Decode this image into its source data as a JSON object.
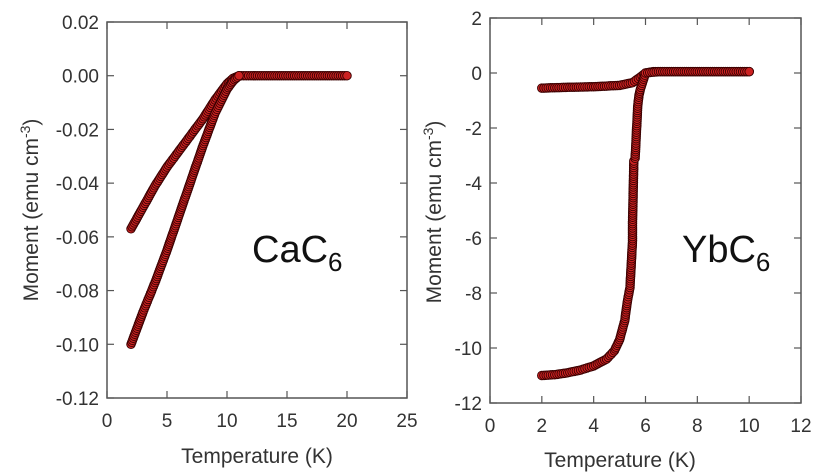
{
  "chart_data": [
    {
      "type": "scatter",
      "id": "cac6",
      "xlabel": "Temperature (K)",
      "ylabel": "Moment (emu cm",
      "ylabel_sup": "-3",
      "ylabel_close": ")",
      "xlim": [
        0,
        25
      ],
      "ylim": [
        -0.12,
        0.02
      ],
      "xticks": [
        0,
        5,
        10,
        15,
        20,
        25
      ],
      "yticks": [
        0.02,
        0.0,
        -0.02,
        -0.04,
        -0.06,
        -0.08,
        -0.1,
        -0.12
      ],
      "xtick_labels": [
        "0",
        "5",
        "10",
        "15",
        "20",
        "25"
      ],
      "ytick_labels": [
        "0.02",
        "0.00",
        "-0.02",
        "-0.04",
        "-0.06",
        "-0.08",
        "-0.10",
        "-0.12"
      ],
      "annotation": "CaC",
      "annotation_sub": "6",
      "marker_color": "#cc2222",
      "series": [
        {
          "x": [
            2.0,
            3.0,
            4.0,
            5.0,
            6.0,
            7.0,
            8.0,
            9.0,
            10.0,
            10.5,
            11.0,
            12.0,
            14.0,
            16.0,
            18.0,
            20.0
          ],
          "y": [
            -0.057,
            -0.049,
            -0.041,
            -0.034,
            -0.028,
            -0.022,
            -0.016,
            -0.009,
            -0.003,
            -0.001,
            0.0,
            0.0,
            0.0,
            0.0,
            0.0,
            0.0
          ]
        },
        {
          "x": [
            2.0,
            3.0,
            4.0,
            5.0,
            6.0,
            7.0,
            8.0,
            9.0,
            10.0,
            10.5,
            11.0
          ],
          "y": [
            -0.1,
            -0.088,
            -0.077,
            -0.065,
            -0.052,
            -0.039,
            -0.026,
            -0.014,
            -0.005,
            -0.002,
            0.0
          ]
        }
      ]
    },
    {
      "type": "scatter",
      "id": "ybc6",
      "xlabel": "Temperature (K)",
      "ylabel": "Moment (emu cm",
      "ylabel_sup": "-3",
      "ylabel_close": ")",
      "xlim": [
        0,
        12
      ],
      "ylim": [
        -12,
        2
      ],
      "xticks": [
        0,
        2,
        4,
        6,
        8,
        10,
        12
      ],
      "yticks": [
        2,
        0,
        -2,
        -4,
        -6,
        -8,
        -10,
        -12
      ],
      "xtick_labels": [
        "0",
        "2",
        "4",
        "6",
        "8",
        "10",
        "12"
      ],
      "ytick_labels": [
        "2",
        "0",
        "-2",
        "-4",
        "-6",
        "-8",
        "-10",
        "-12"
      ],
      "annotation": "YbC",
      "annotation_sub": "6",
      "marker_color": "#cc2222",
      "series": [
        {
          "x": [
            2.0,
            3.0,
            4.0,
            5.0,
            5.5,
            5.8,
            6.0,
            6.3,
            7.0,
            8.0,
            9.0,
            10.0
          ],
          "y": [
            -0.55,
            -0.52,
            -0.5,
            -0.45,
            -0.35,
            -0.15,
            0.0,
            0.05,
            0.05,
            0.05,
            0.05,
            0.05
          ]
        },
        {
          "x": [
            2.0,
            2.5,
            3.0,
            3.5,
            4.0,
            4.5,
            4.8,
            5.0,
            5.2,
            5.3,
            5.4,
            5.5,
            5.5,
            5.55,
            5.6,
            5.7,
            5.75,
            5.8,
            6.0,
            6.5,
            7.0,
            8.0,
            9.0,
            10.0
          ],
          "y": [
            -11.0,
            -10.97,
            -10.9,
            -10.8,
            -10.65,
            -10.4,
            -10.1,
            -9.7,
            -9.0,
            -8.3,
            -7.8,
            -6.1,
            -5.4,
            -3.2,
            -3.1,
            -1.2,
            -0.8,
            -0.6,
            0.0,
            0.05,
            0.05,
            0.05,
            0.05,
            0.05
          ]
        }
      ]
    }
  ]
}
